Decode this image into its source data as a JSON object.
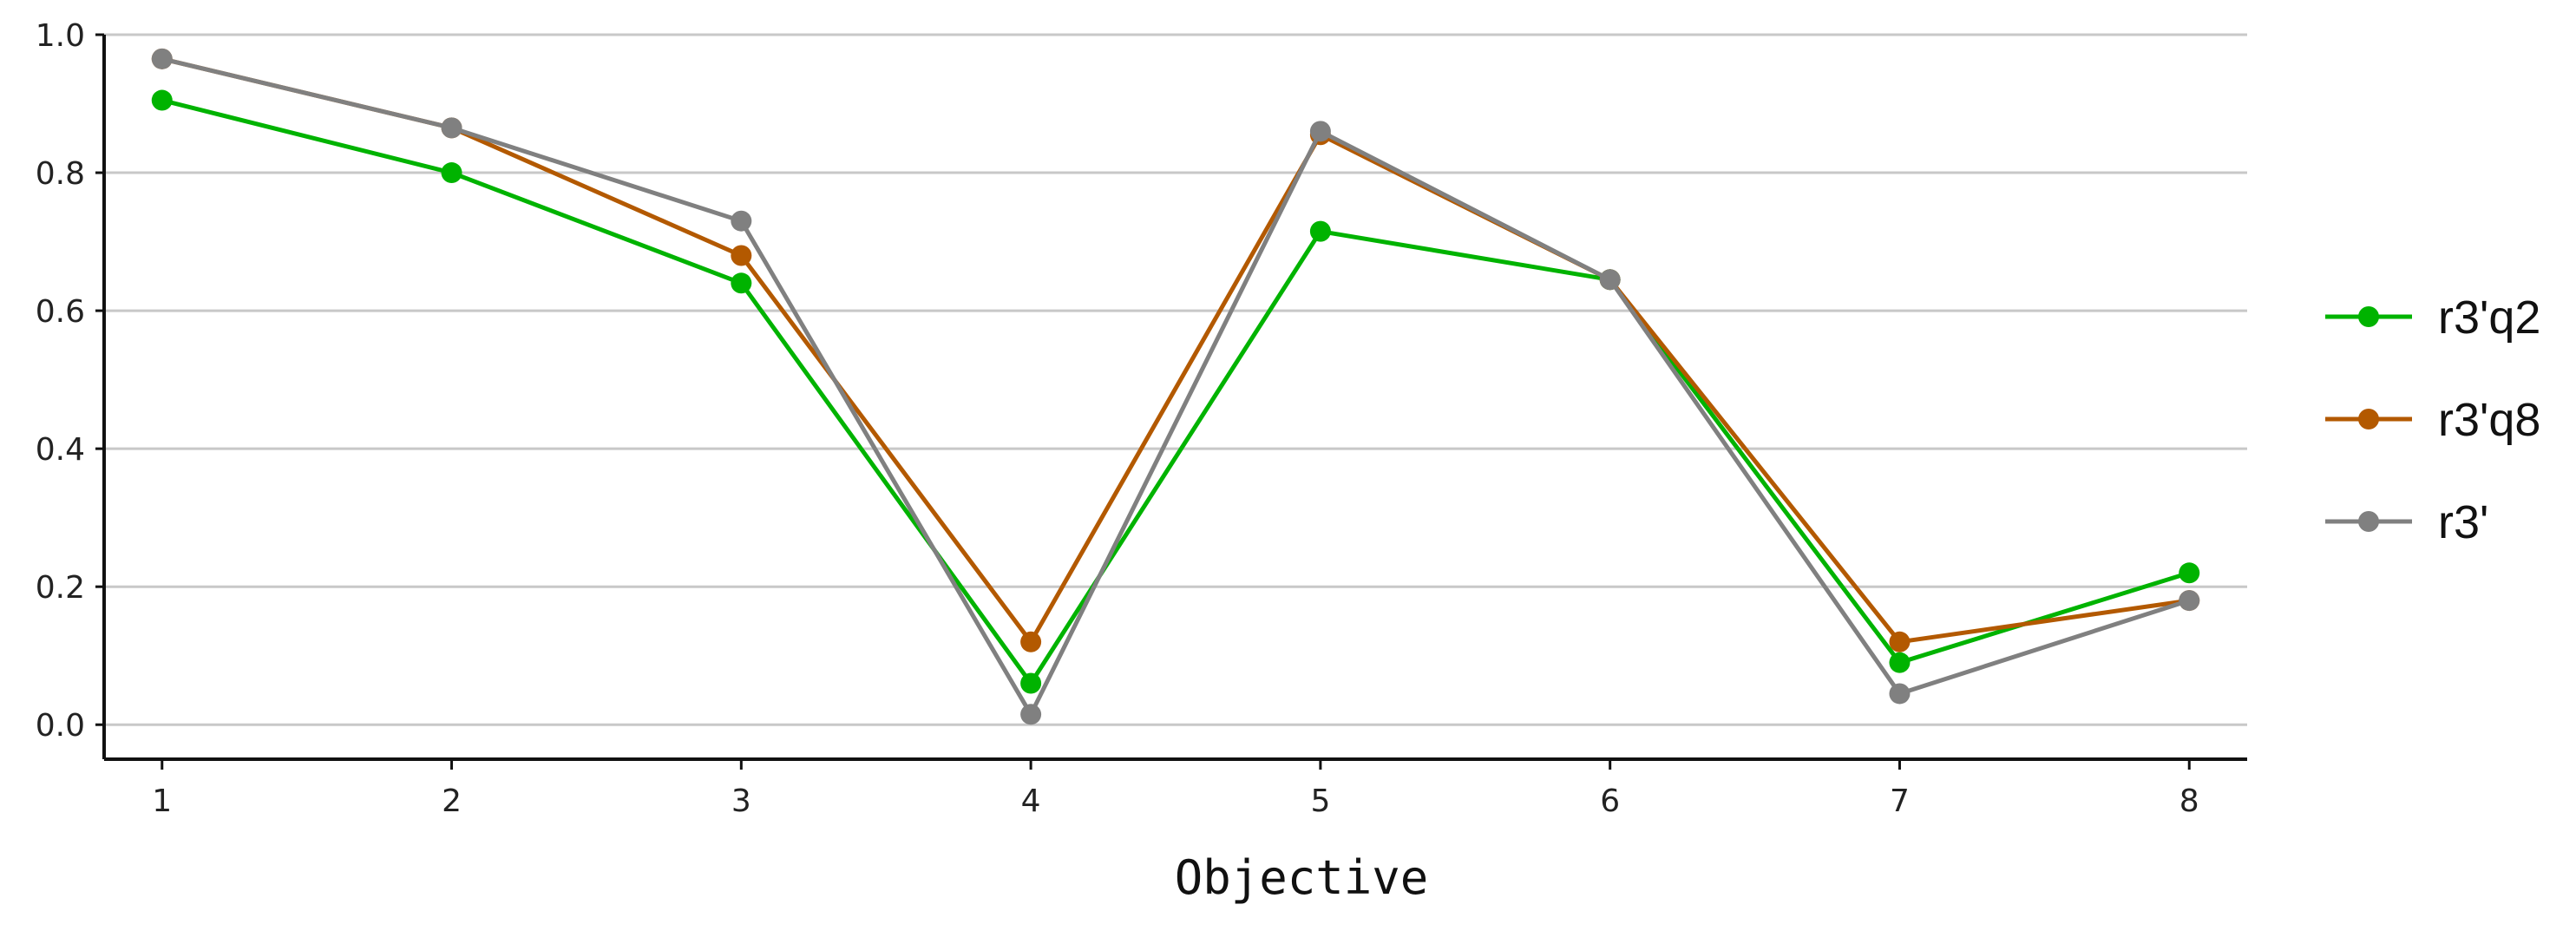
{
  "chart_data": {
    "type": "line",
    "title": "",
    "xlabel": "Objective",
    "ylabel": "",
    "x": [
      1,
      2,
      3,
      4,
      5,
      6,
      7,
      8
    ],
    "xlim": [
      0.8,
      8.2
    ],
    "ylim": [
      -0.05,
      1.0
    ],
    "xticks": [
      1,
      2,
      3,
      4,
      5,
      6,
      7,
      8
    ],
    "yticks": [
      0.0,
      0.2,
      0.4,
      0.6,
      0.8,
      1.0
    ],
    "ytick_labels": [
      "0.0",
      "0.2",
      "0.4",
      "0.6",
      "0.8",
      "1.0"
    ],
    "grid": "horizontal",
    "legend_position": "right",
    "series": [
      {
        "name": "r3'q2",
        "color": "#00b300",
        "values": [
          0.905,
          0.8,
          0.64,
          0.06,
          0.715,
          0.645,
          0.09,
          0.22
        ]
      },
      {
        "name": "r3'q8",
        "color": "#b35900",
        "values": [
          0.965,
          0.865,
          0.68,
          0.12,
          0.855,
          0.645,
          0.12,
          0.18
        ]
      },
      {
        "name": "r3'",
        "color": "#808080",
        "values": [
          0.965,
          0.865,
          0.73,
          0.015,
          0.86,
          0.645,
          0.045,
          0.18
        ]
      }
    ]
  }
}
